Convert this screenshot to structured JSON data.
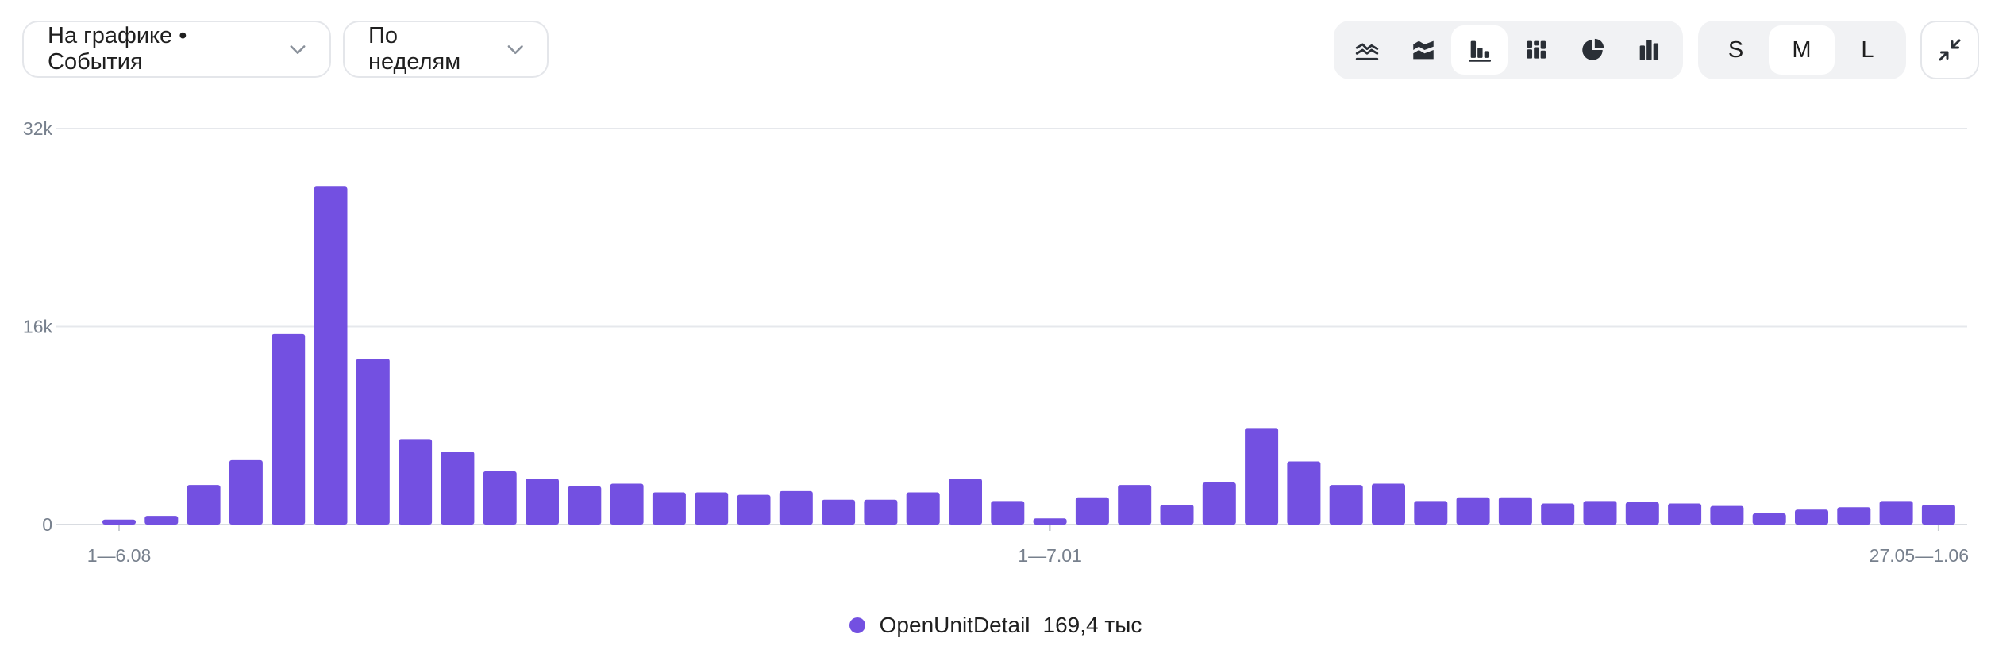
{
  "controls": {
    "metric_dropdown": "На графике • События",
    "period_dropdown": "По неделям",
    "chart_types": [
      {
        "icon": "line-chart-icon",
        "active": false
      },
      {
        "icon": "stacked-area-chart-icon",
        "active": false
      },
      {
        "icon": "bar-chart-icon",
        "active": true
      },
      {
        "icon": "stacked-bar-chart-icon",
        "active": false
      },
      {
        "icon": "pie-chart-icon",
        "active": false
      },
      {
        "icon": "column-chart-icon",
        "active": false
      }
    ],
    "sizes": [
      {
        "label": "S",
        "active": false
      },
      {
        "label": "M",
        "active": true
      },
      {
        "label": "L",
        "active": false
      }
    ],
    "collapse_icon": "collapse-icon"
  },
  "legend": {
    "name": "OpenUnitDetail",
    "total": "169,4 тыс",
    "color": "#7350e1"
  },
  "chart_data": {
    "type": "bar",
    "ylim": [
      0,
      32000
    ],
    "yticks": [
      {
        "value": 0,
        "label": "0"
      },
      {
        "value": 16000,
        "label": "16k"
      },
      {
        "value": 32000,
        "label": "32k"
      }
    ],
    "xtick_labels": [
      {
        "index": 0,
        "label": "1—6.08"
      },
      {
        "index": 22,
        "label": "1—7.01"
      },
      {
        "index": 43,
        "label": "27.05—1.06"
      }
    ],
    "grid": true,
    "legend_position": "bottom",
    "series": [
      {
        "name": "OpenUnitDetail",
        "color": "#7350e1",
        "values": [
          400,
          700,
          3200,
          5200,
          15400,
          27300,
          13400,
          6900,
          5900,
          4300,
          3700,
          3100,
          3300,
          2600,
          2600,
          2400,
          2700,
          2000,
          2000,
          2600,
          3700,
          1900,
          500,
          2200,
          3200,
          1600,
          3400,
          7800,
          5100,
          3200,
          3300,
          1900,
          2200,
          2200,
          1700,
          1900,
          1800,
          1700,
          1500,
          900,
          1200,
          1400,
          1900,
          1600
        ]
      }
    ]
  }
}
